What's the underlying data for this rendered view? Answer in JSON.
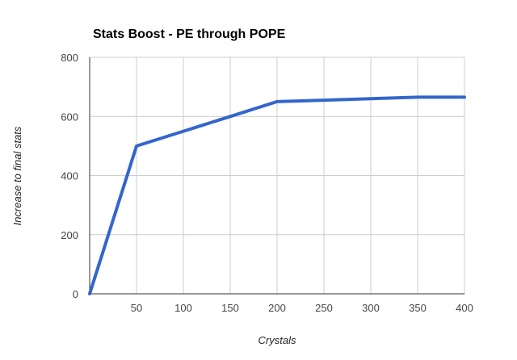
{
  "chart_data": {
    "type": "line",
    "title": "Stats Boost - PE through POPE",
    "xlabel": "Crystals",
    "ylabel": "Increase to final stats",
    "xlim": [
      0,
      400
    ],
    "ylim": [
      0,
      800
    ],
    "x_ticks": [
      50,
      100,
      150,
      200,
      250,
      300,
      350,
      400
    ],
    "y_ticks": [
      0,
      200,
      400,
      600,
      800
    ],
    "grid": true,
    "legend": "none",
    "series": [
      {
        "name": "Increase to final stats",
        "color": "#3366cc",
        "points": [
          {
            "x": 0,
            "y": 0
          },
          {
            "x": 50,
            "y": 500
          },
          {
            "x": 100,
            "y": 550
          },
          {
            "x": 150,
            "y": 600
          },
          {
            "x": 200,
            "y": 650
          },
          {
            "x": 250,
            "y": 655
          },
          {
            "x": 300,
            "y": 660
          },
          {
            "x": 350,
            "y": 665
          },
          {
            "x": 400,
            "y": 665
          }
        ]
      }
    ]
  }
}
